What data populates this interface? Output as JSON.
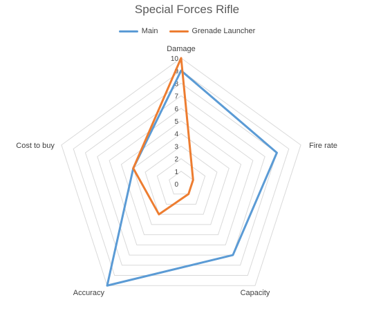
{
  "chart_data": {
    "type": "radar",
    "title": "Special Forces Rifle",
    "axes": [
      "Damage",
      "Fire rate",
      "Capacity",
      "Accuracy",
      "Cost to buy"
    ],
    "rlim": [
      0,
      10
    ],
    "ticks": [
      0,
      1,
      2,
      3,
      4,
      5,
      6,
      7,
      8,
      9,
      10
    ],
    "grid": true,
    "legend_position": "top",
    "series": [
      {
        "name": "Main",
        "color": "#5B9BD5",
        "values": [
          9,
          8,
          7,
          10,
          4
        ]
      },
      {
        "name": "Grenade Launcher",
        "color": "#ED7D31",
        "values": [
          10,
          1,
          1,
          3,
          4
        ]
      }
    ]
  }
}
